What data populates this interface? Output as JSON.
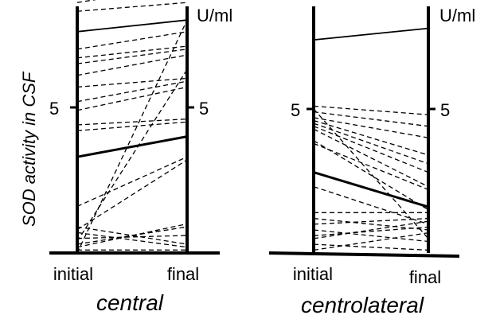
{
  "chart_data": [
    {
      "type": "line",
      "title": "central",
      "ylabel": "SOD activity in CSF",
      "unit": "U/ml",
      "categories": [
        "initial",
        "final"
      ],
      "ylim": [
        0,
        9.2
      ],
      "yticks": [
        5
      ],
      "series": [
        {
          "style": "dashed",
          "values": [
            8.6,
            9.2
          ]
        },
        {
          "style": "dashed",
          "values": [
            8.3,
            8.6
          ]
        },
        {
          "style": "solid",
          "values": [
            7.6,
            8.0
          ]
        },
        {
          "style": "dashed",
          "values": [
            7.0,
            7.6
          ]
        },
        {
          "style": "dashed",
          "values": [
            6.7,
            7.1
          ]
        },
        {
          "style": "dashed",
          "values": [
            6.5,
            7.0
          ]
        },
        {
          "style": "dashed",
          "values": [
            6.1,
            6.8
          ]
        },
        {
          "style": "dashed",
          "values": [
            5.7,
            6.0
          ]
        },
        {
          "style": "dashed",
          "values": [
            5.2,
            5.9
          ]
        },
        {
          "style": "dashed",
          "values": [
            4.9,
            5.7
          ]
        },
        {
          "style": "dashed",
          "values": [
            4.4,
            4.6
          ]
        },
        {
          "style": "dashed",
          "values": [
            4.2,
            4.5
          ]
        },
        {
          "style": "bold",
          "values": [
            3.3,
            4.0
          ]
        },
        {
          "style": "dashed",
          "values": [
            0.0,
            8.0
          ]
        },
        {
          "style": "dashed",
          "values": [
            0.4,
            6.3
          ]
        },
        {
          "style": "dashed",
          "values": [
            0.8,
            3.2
          ]
        },
        {
          "style": "dashed",
          "values": [
            1.6,
            3.3
          ]
        },
        {
          "style": "dashed",
          "values": [
            0.9,
            0.3
          ]
        },
        {
          "style": "dashed",
          "values": [
            0.7,
            0.2
          ]
        },
        {
          "style": "dashed",
          "values": [
            0.5,
            0.6
          ]
        },
        {
          "style": "dashed",
          "values": [
            0.3,
            0.9
          ]
        },
        {
          "style": "dashed",
          "values": [
            0.2,
            1.0
          ]
        },
        {
          "style": "dashed",
          "values": [
            0.1,
            0.1
          ]
        }
      ]
    },
    {
      "type": "line",
      "title": "centrolateral",
      "unit": "U/ml",
      "categories": [
        "initial",
        "final"
      ],
      "ylim": [
        0,
        9.2
      ],
      "yticks": [
        5
      ],
      "series": [
        {
          "style": "solid",
          "values": [
            7.4,
            7.8
          ]
        },
        {
          "style": "dashed",
          "values": [
            5.1,
            4.8
          ]
        },
        {
          "style": "dashed",
          "values": [
            4.9,
            4.4
          ]
        },
        {
          "style": "dashed",
          "values": [
            4.7,
            4.0
          ]
        },
        {
          "style": "dashed",
          "values": [
            4.6,
            3.4
          ]
        },
        {
          "style": "dashed",
          "values": [
            4.5,
            3.1
          ]
        },
        {
          "style": "dashed",
          "values": [
            4.4,
            2.8
          ]
        },
        {
          "style": "dashed",
          "values": [
            4.3,
            2.3
          ]
        },
        {
          "style": "dashed",
          "values": [
            3.8,
            2.2
          ]
        },
        {
          "style": "dashed",
          "values": [
            3.9,
            1.5
          ]
        },
        {
          "style": "dashed",
          "values": [
            5.0,
            0.5
          ]
        },
        {
          "style": "bold",
          "values": [
            2.8,
            1.6
          ]
        },
        {
          "style": "dashed",
          "values": [
            2.3,
            1.0
          ]
        },
        {
          "style": "dashed",
          "values": [
            1.4,
            1.4
          ]
        },
        {
          "style": "dashed",
          "values": [
            1.2,
            0.8
          ]
        },
        {
          "style": "dashed",
          "values": [
            1.0,
            1.2
          ]
        },
        {
          "style": "dashed",
          "values": [
            0.8,
            0.4
          ]
        },
        {
          "style": "dashed",
          "values": [
            0.6,
            0.9
          ]
        },
        {
          "style": "dashed",
          "values": [
            0.5,
            1.1
          ]
        },
        {
          "style": "dashed",
          "values": [
            0.3,
            0.1
          ]
        },
        {
          "style": "dashed",
          "values": [
            0.1,
            0.7
          ]
        }
      ]
    }
  ]
}
